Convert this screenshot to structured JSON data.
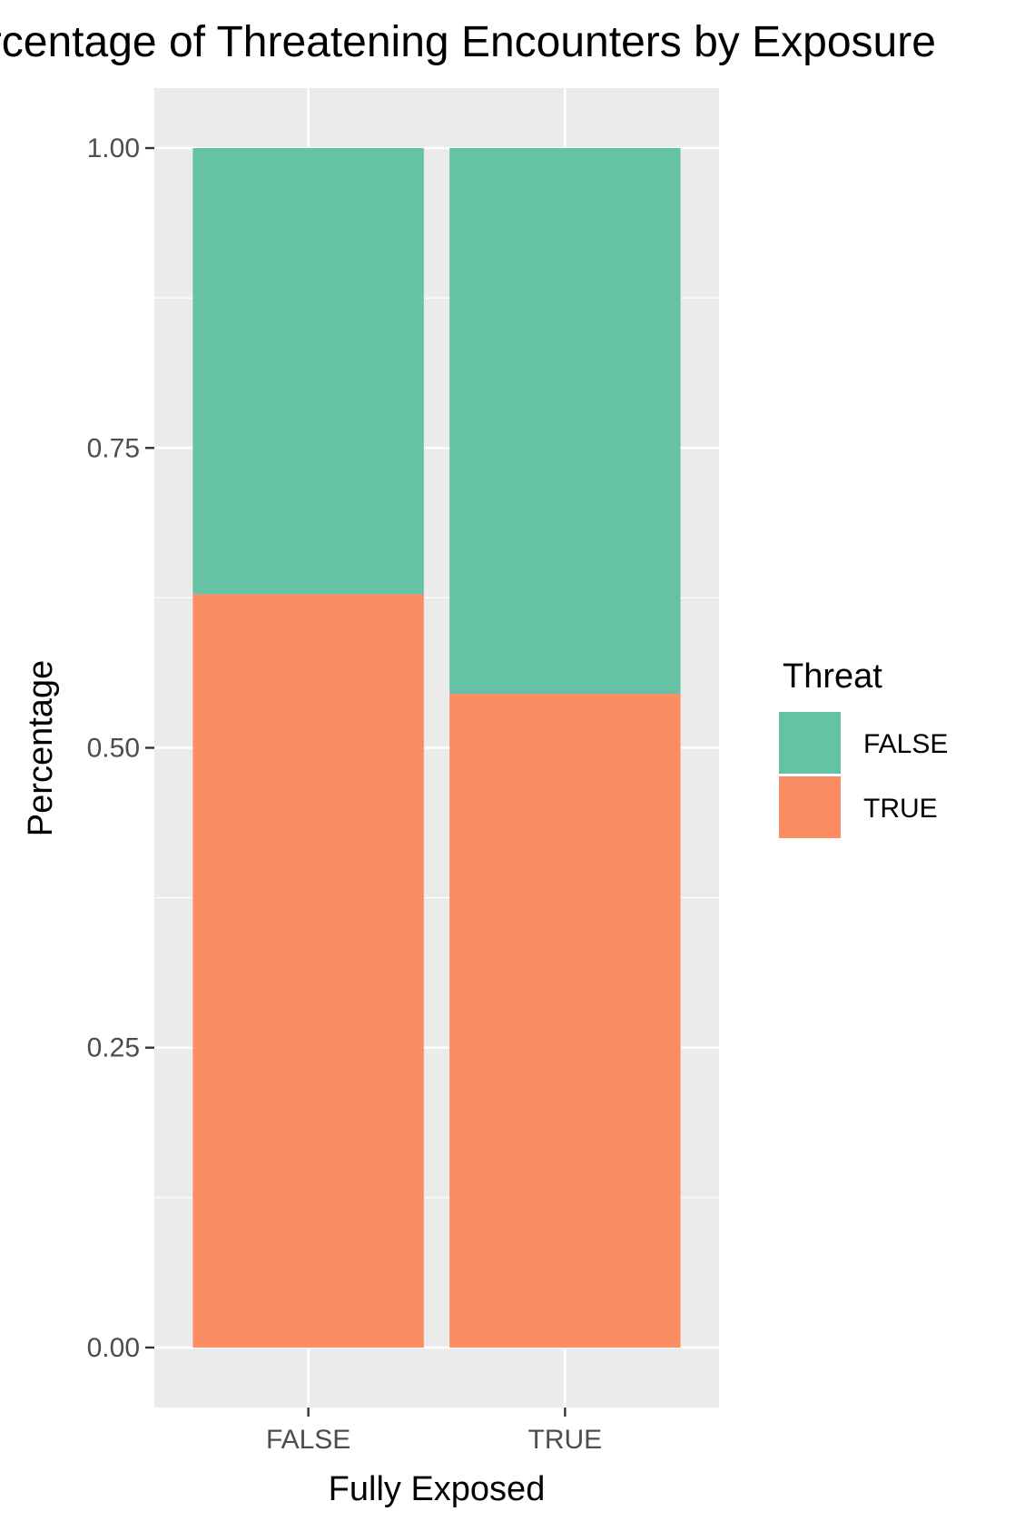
{
  "chart_data": {
    "type": "bar",
    "stacked": true,
    "title": "Percentage of Threatening Encounters by Exposure",
    "xlabel": "Fully Exposed",
    "ylabel": "Percentage",
    "categories": [
      "FALSE",
      "TRUE"
    ],
    "series": [
      {
        "name": "FALSE",
        "values": [
          0.372,
          0.455
        ],
        "color": "#66c2a5"
      },
      {
        "name": "TRUE",
        "values": [
          0.628,
          0.545
        ],
        "color": "#fc8d62"
      }
    ],
    "stack_order": [
      "TRUE",
      "FALSE"
    ],
    "ylim": [
      -0.05,
      1.05
    ],
    "yticks": [
      0.0,
      0.25,
      0.5,
      0.75,
      1.0
    ],
    "ytick_labels": [
      "0.00",
      "0.25",
      "0.50",
      "0.75",
      "1.00"
    ],
    "grid": true,
    "panel_background": "#ebebeb",
    "legend": {
      "title": "Threat",
      "placement": "right",
      "entries": [
        "FALSE",
        "TRUE"
      ]
    }
  }
}
